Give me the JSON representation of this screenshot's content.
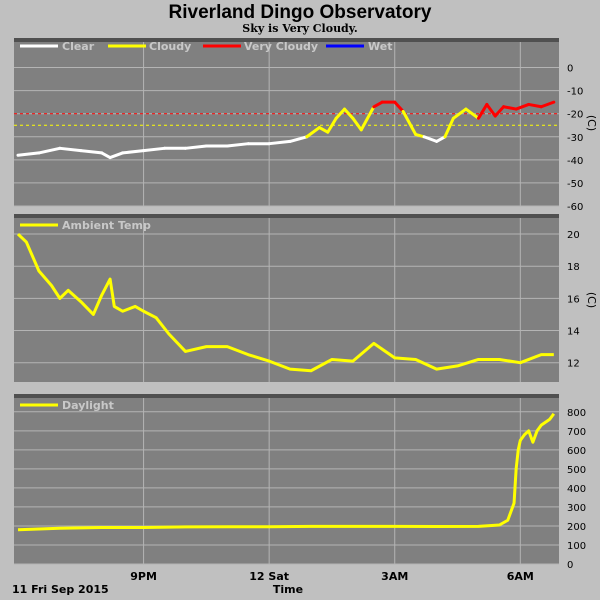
{
  "title": "Riverland Dingo Observatory",
  "subtitle": "Sky is Very Cloudy.",
  "x_axis": {
    "label": "Time",
    "date_label": "11 Fri Sep 2015",
    "ticks": [
      {
        "label": "9PM",
        "hours": 3
      },
      {
        "label": "12 Sat",
        "hours": 6
      },
      {
        "label": "3AM",
        "hours": 9
      },
      {
        "label": "6AM",
        "hours": 12
      }
    ],
    "range_hours": [
      0,
      12.9
    ]
  },
  "colors": {
    "panel_bg": "#808080",
    "grid": "#b4b4b4",
    "clear": "#ffffff",
    "cloudy": "#ffff00",
    "very_cloudy": "#ff0000",
    "wet": "#0000ff"
  },
  "chart_data": [
    {
      "type": "line",
      "name": "sky-temperature",
      "legend": [
        "Clear",
        "Cloudy",
        "Very Cloudy",
        "Wet"
      ],
      "ylim": [
        -60,
        5
      ],
      "yticks": [
        0,
        -10,
        -20,
        -30,
        -40,
        -50,
        -60
      ],
      "unit": "(C)",
      "thresholds": [
        {
          "value": -20,
          "color": "#ff0000"
        },
        {
          "value": -25,
          "color": "#ffff00"
        }
      ],
      "x": [
        0.0,
        0.5,
        1.0,
        1.5,
        2.0,
        2.2,
        2.5,
        3.0,
        3.5,
        4.0,
        4.5,
        5.0,
        5.5,
        6.0,
        6.5,
        6.9,
        7.2,
        7.4,
        7.6,
        7.8,
        8.0,
        8.2,
        8.5,
        8.7,
        9.0,
        9.2,
        9.5,
        9.7,
        10.0,
        10.2,
        10.4,
        10.7,
        11.0,
        11.2,
        11.4,
        11.6,
        11.9,
        12.2,
        12.5,
        12.8
      ],
      "y": [
        -38,
        -37,
        -35,
        -36,
        -37,
        -39,
        -37,
        -36,
        -35,
        -35,
        -34,
        -34,
        -33,
        -33,
        -32,
        -30,
        -26,
        -28,
        -22,
        -18,
        -22,
        -27,
        -17,
        -15,
        -15,
        -19,
        -29,
        -30,
        -32,
        -30,
        -22,
        -18,
        -22,
        -16,
        -21,
        -17,
        -18,
        -16,
        -17,
        -15
      ]
    },
    {
      "type": "line",
      "name": "ambient-temp",
      "legend": [
        "Ambient Temp"
      ],
      "ylim": [
        10.8,
        20.5
      ],
      "yticks": [
        20,
        18,
        16,
        14,
        12
      ],
      "unit": "(C)",
      "x": [
        0.0,
        0.2,
        0.5,
        0.8,
        1.0,
        1.2,
        1.5,
        1.8,
        2.0,
        2.2,
        2.3,
        2.5,
        2.8,
        3.0,
        3.3,
        3.6,
        4.0,
        4.5,
        5.0,
        5.5,
        6.0,
        6.5,
        7.0,
        7.5,
        8.0,
        8.5,
        9.0,
        9.5,
        10.0,
        10.5,
        11.0,
        11.5,
        12.0,
        12.5,
        12.8
      ],
      "y": [
        20.0,
        19.5,
        17.7,
        16.8,
        16.0,
        16.5,
        15.8,
        15.0,
        16.2,
        17.2,
        15.5,
        15.2,
        15.5,
        15.2,
        14.8,
        13.8,
        12.7,
        13.0,
        13.0,
        12.5,
        12.1,
        11.6,
        11.5,
        12.2,
        12.1,
        13.2,
        12.3,
        12.2,
        11.6,
        11.8,
        12.2,
        12.2,
        12.0,
        12.5,
        12.5
      ]
    },
    {
      "type": "line",
      "name": "daylight",
      "legend": [
        "Daylight"
      ],
      "ylim": [
        0,
        820
      ],
      "yticks": [
        800,
        700,
        600,
        500,
        400,
        300,
        200,
        100,
        0
      ],
      "x": [
        0.0,
        1.0,
        2.0,
        3.0,
        4.0,
        5.0,
        6.0,
        7.0,
        8.0,
        9.0,
        10.0,
        11.0,
        11.5,
        11.7,
        11.85,
        11.9,
        11.95,
        12.0,
        12.1,
        12.2,
        12.3,
        12.4,
        12.5,
        12.7,
        12.8
      ],
      "y": [
        180,
        188,
        192,
        192,
        195,
        196,
        196,
        198,
        198,
        198,
        197,
        198,
        205,
        230,
        320,
        500,
        600,
        650,
        680,
        700,
        640,
        700,
        730,
        760,
        790
      ]
    }
  ]
}
